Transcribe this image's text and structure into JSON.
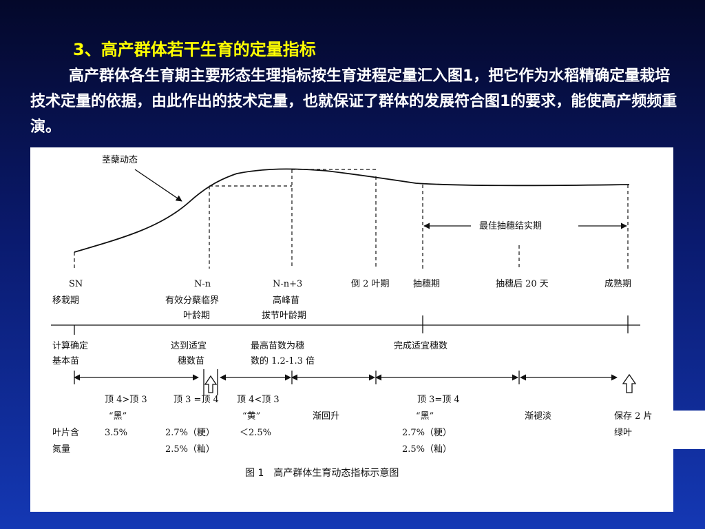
{
  "title": "3、高产群体若干生育的定量指标",
  "paragraph": "高产群体各生育期主要形态生理指标按生育进程定量汇入图1，把它作为水稻精确定量栽培技术定量的依据，由此作出的技术定量，也就保证了群体的发展符合图1的要求，能使高产频频重演。",
  "diagram": {
    "curve_label": "茎蘖动态",
    "best_period_label": "最佳抽穗结实期",
    "stages": {
      "sn": "SN",
      "nn": "N-n",
      "nn3": "N-n+3",
      "dao2": "倒 2 叶期",
      "choushui": "抽穗期",
      "after20": "抽穗后 20 天",
      "chengshu": "成熟期"
    },
    "stage_sub": {
      "yizai": "移栽期",
      "youxiao_1": "有效分蘖临界",
      "youxiao_2": "叶龄期",
      "gaofeng_1": "高峰苗",
      "gaofeng_2": "拔节叶龄期"
    },
    "targets": {
      "jisuan_1": "计算确定",
      "jisuan_2": "基本苗",
      "dadao_1": "达到适宜",
      "dadao_2": "穗数苗",
      "zuigao_1": "最高苗数为穗",
      "zuigao_2": "数的 1.2-1.3 倍",
      "wancheng": "完成适宜穗数"
    },
    "leaf_color": {
      "c1": "顶 4>顶 3",
      "c2": "顶 3 =顶 4",
      "c3": "顶 4<顶 3",
      "c4": "顶 3=顶 4",
      "hei1": "“黑”",
      "huang": "“黄”",
      "jianhuisheng": "渐回升",
      "hei2": "“黑”",
      "jiantuidan": "渐褪淡",
      "baocun_1": "保存 2 片",
      "baocun_2": "绿叶"
    },
    "nitrogen": {
      "label_1": "叶片含",
      "label_2": "氮量",
      "v1": "3.5%",
      "v2a": "2.7%（粳）",
      "v2b": "2.5%（籼）",
      "v3": "＜2.5%",
      "v4a": "2.7%（粳）",
      "v4b": "2.5%（籼）"
    },
    "caption": "图 1　高产群体生育动态指标示意图"
  }
}
